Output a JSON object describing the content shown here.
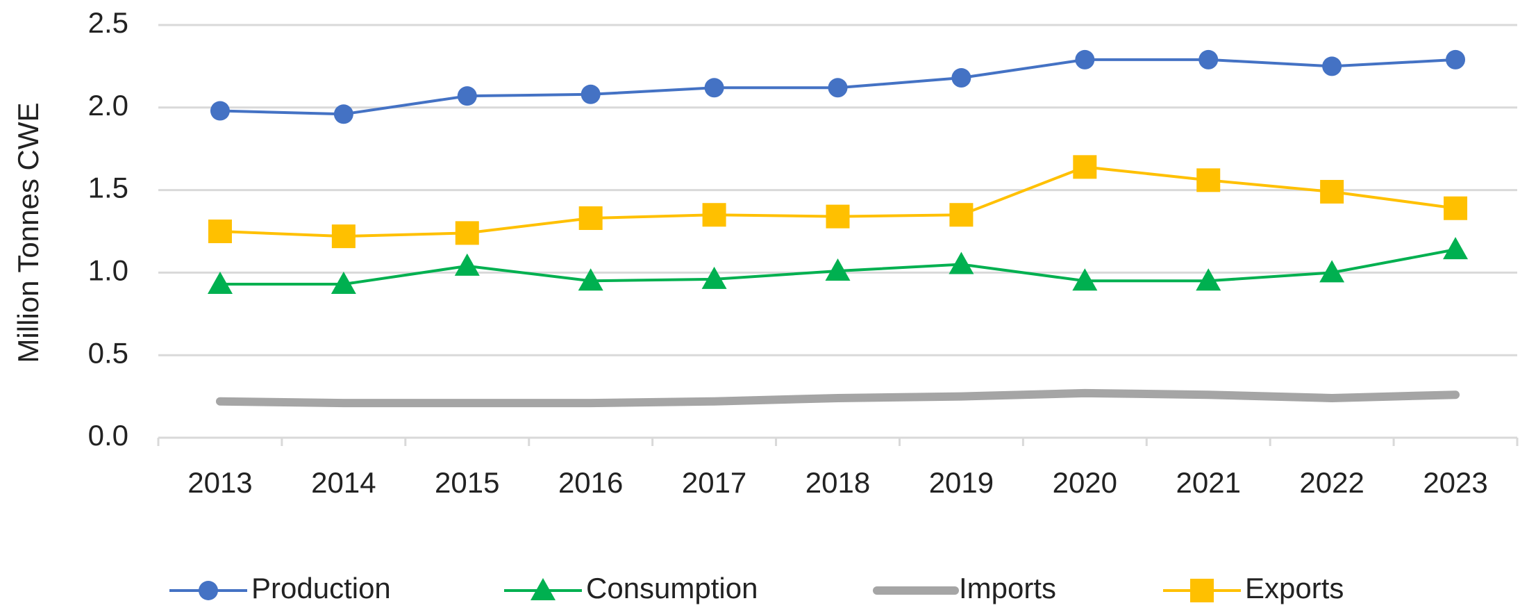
{
  "chart_data": {
    "type": "line",
    "ylabel": "Million Tonnes CWE",
    "categories": [
      "2013",
      "2014",
      "2015",
      "2016",
      "2017",
      "2018",
      "2019",
      "2020",
      "2021",
      "2022",
      "2023"
    ],
    "series": [
      {
        "name": "Production",
        "color": "#4472c4",
        "marker": "circle",
        "values": [
          1.98,
          1.96,
          2.07,
          2.08,
          2.12,
          2.12,
          2.18,
          2.29,
          2.29,
          2.25,
          2.29
        ]
      },
      {
        "name": "Consumption",
        "color": "#00b050",
        "marker": "triangle",
        "values": [
          0.93,
          0.93,
          1.04,
          0.95,
          0.96,
          1.01,
          1.05,
          0.95,
          0.95,
          1.0,
          1.14
        ]
      },
      {
        "name": "Imports",
        "color": "#a5a5a5",
        "marker": "none",
        "values": [
          0.22,
          0.21,
          0.21,
          0.21,
          0.22,
          0.24,
          0.25,
          0.27,
          0.26,
          0.24,
          0.26
        ]
      },
      {
        "name": "Exports",
        "color": "#ffc000",
        "marker": "square",
        "values": [
          1.25,
          1.22,
          1.24,
          1.33,
          1.35,
          1.34,
          1.35,
          1.64,
          1.56,
          1.49,
          1.39
        ]
      }
    ],
    "ylim": [
      0,
      2.5
    ],
    "yticks": [
      {
        "value": 0,
        "label": "0.0"
      },
      0.5,
      {
        "value": 1,
        "label": "1.0"
      },
      1.5,
      {
        "value": 2,
        "label": "2.0"
      },
      2.5
    ],
    "grid": true,
    "legend": "bottom"
  }
}
